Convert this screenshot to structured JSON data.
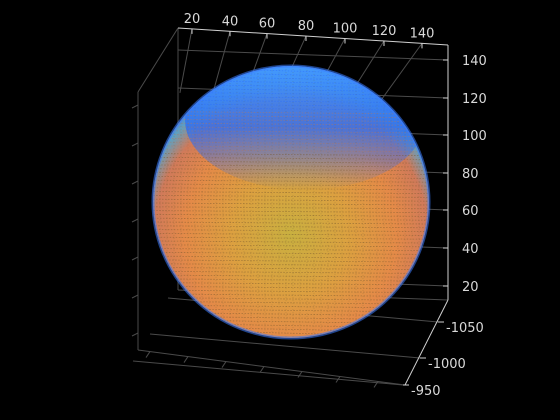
{
  "chart_data": {
    "type": "scatter",
    "subtype": "3d-point-cloud-sphere",
    "title": "",
    "xlabel": "",
    "ylabel": "",
    "zlabel": "",
    "background": "#000000",
    "axis_color": "#d9d9d9",
    "grid": true,
    "x_ticks": [
      "20",
      "40",
      "60",
      "80",
      "100",
      "120",
      "140"
    ],
    "z_ticks": [
      "20",
      "40",
      "60",
      "80",
      "100",
      "120",
      "140"
    ],
    "y_ticks": [
      "-1050",
      "-1000",
      "-950"
    ],
    "sphere": {
      "center": [
        80,
        -1000,
        75
      ],
      "radius": 70,
      "colormap": [
        "#1f3fff",
        "#1e90ff",
        "#2fd0c0",
        "#c8e040",
        "#e8c040",
        "#f0a040",
        "#e87850"
      ]
    }
  }
}
